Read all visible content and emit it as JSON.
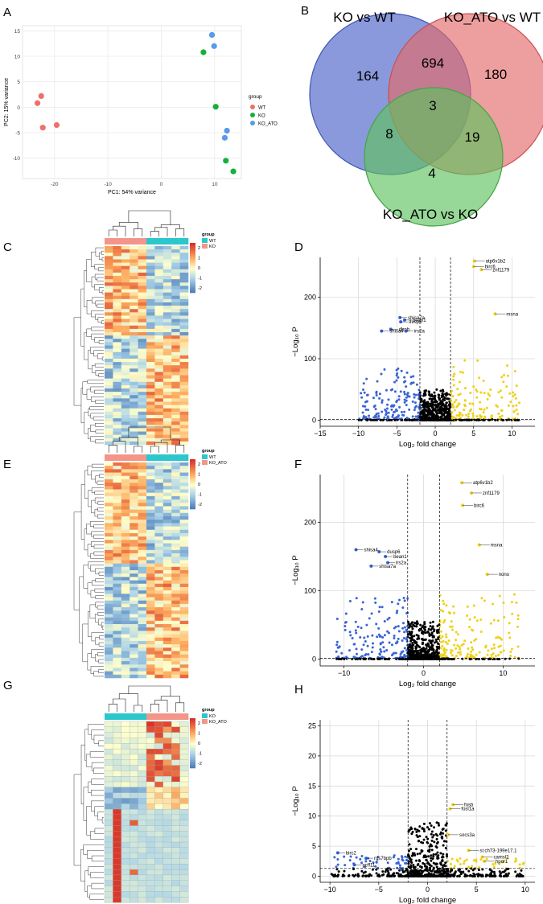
{
  "panels": {
    "A": "A",
    "B": "B",
    "C": "C",
    "D": "D",
    "E": "E",
    "F": "F",
    "G": "G",
    "H": "H"
  },
  "colors": {
    "wt": "#F07069",
    "ko": "#13B13A",
    "ko_ato": "#5A9AEB",
    "teal": "#2CC7CC",
    "salmon": "#F4958A",
    "up": "#EFD11B",
    "down": "#3A63D6",
    "ns": "#000000",
    "venn_blue": "#4C63C7",
    "venn_red": "#E36A6A",
    "venn_green": "#60C260"
  },
  "chart_data": [
    {
      "panel": "A",
      "type": "scatter",
      "xlabel": "PC1: 54% variance",
      "ylabel": "PC2: 15% variance",
      "xlim": [
        -26,
        15
      ],
      "ylim": [
        -14,
        16
      ],
      "xticks": [
        -20,
        -10,
        0,
        10
      ],
      "yticks": [
        -10,
        -5,
        0,
        5,
        10,
        15
      ],
      "legend_title": "group",
      "series": [
        {
          "name": "WT",
          "points": [
            [
              -22.5,
              2.2
            ],
            [
              -23.2,
              0.8
            ],
            [
              -22.2,
              -4.0
            ],
            [
              -19.6,
              -3.5
            ]
          ]
        },
        {
          "name": "KO",
          "points": [
            [
              7.9,
              10.8
            ],
            [
              10.2,
              0.1
            ],
            [
              12.1,
              -10.5
            ],
            [
              13.5,
              -12.6
            ]
          ]
        },
        {
          "name": "KO_ATO",
          "points": [
            [
              9.5,
              14.2
            ],
            [
              9.9,
              12.0
            ],
            [
              12.3,
              -4.6
            ],
            [
              11.9,
              -6.0
            ]
          ]
        }
      ]
    },
    {
      "panel": "B",
      "type": "venn",
      "sets": [
        "KO vs WT",
        "KO_ATO vs WT",
        "KO_ATO vs KO"
      ],
      "regions": {
        "a": "164",
        "b": "180",
        "c": "4",
        "ab": "694",
        "ac": "8",
        "bc": "19",
        "abc": "3"
      }
    },
    {
      "panel": "C",
      "type": "heatmap",
      "legend_title": "group",
      "legend": [
        "WT",
        "KO"
      ],
      "scale_ticks": [
        "2",
        "1",
        "0",
        "-1",
        "-2"
      ],
      "column_groups": [
        "KO",
        "WT"
      ]
    },
    {
      "panel": "D",
      "type": "scatter",
      "xlabel": "Log₂ fold change",
      "ylabel": "−Log₁₀ P",
      "xlim": [
        -15,
        13
      ],
      "ylim": [
        -10,
        265
      ],
      "xticks": [
        -15,
        -10,
        -5,
        0,
        5,
        10
      ],
      "yticks": [
        0,
        100,
        200
      ],
      "vlines": [
        -2,
        2
      ],
      "hline": 1.3,
      "labeled_genes": [
        {
          "label": "atp6v1b2",
          "x": 5.1,
          "y": 259
        },
        {
          "label": "birc6",
          "x": 5.0,
          "y": 250
        },
        {
          "label": "znf1179",
          "x": 6.0,
          "y": 245
        },
        {
          "label": "msna",
          "x": 7.8,
          "y": 173
        },
        {
          "label": "shisa7a",
          "x": -4.6,
          "y": 167
        },
        {
          "label": "bean1",
          "x": -4.0,
          "y": 163
        },
        {
          "label": "dusp6",
          "x": -4.5,
          "y": 160
        },
        {
          "label": "dbpb",
          "x": -5.8,
          "y": 148
        },
        {
          "label": "irs2a",
          "x": -3.8,
          "y": 145
        },
        {
          "label": "shisa4",
          "x": -7.0,
          "y": 145
        }
      ]
    },
    {
      "panel": "E",
      "type": "heatmap",
      "legend_title": "group",
      "legend": [
        "WT",
        "KO_ATO"
      ],
      "scale_ticks": [
        "2",
        "1",
        "0",
        "-1",
        "-2"
      ],
      "column_groups": [
        "KO_ATO",
        "WT"
      ]
    },
    {
      "panel": "F",
      "type": "scatter",
      "xlabel": "Log₂ fold change",
      "ylabel": "−Log₁₀ P",
      "xlim": [
        -13,
        14
      ],
      "ylim": [
        -10,
        270
      ],
      "xticks": [
        -10,
        0,
        10
      ],
      "yticks": [
        0,
        100,
        200
      ],
      "vlines": [
        -2,
        2
      ],
      "hline": 1.3,
      "labeled_genes": [
        {
          "label": "atp6v1b2",
          "x": 4.8,
          "y": 258
        },
        {
          "label": "znf1179",
          "x": 6.0,
          "y": 243
        },
        {
          "label": "birc6",
          "x": 4.9,
          "y": 225
        },
        {
          "label": "msna",
          "x": 7.0,
          "y": 167
        },
        {
          "label": "nono",
          "x": 8.0,
          "y": 124
        },
        {
          "label": "shisa4",
          "x": -8.5,
          "y": 160
        },
        {
          "label": "dusp6",
          "x": -5.6,
          "y": 157
        },
        {
          "label": "bean1",
          "x": -4.8,
          "y": 150
        },
        {
          "label": "irs2a",
          "x": -4.5,
          "y": 141
        },
        {
          "label": "shisa7a",
          "x": -6.6,
          "y": 136
        }
      ]
    },
    {
      "panel": "G",
      "type": "heatmap",
      "legend_title": "group",
      "legend": [
        "KO",
        "KO_ATO"
      ],
      "scale_ticks": [
        "2",
        "1",
        "0",
        "-1",
        "-2"
      ],
      "column_groups": [
        "KO",
        "KO_ATO"
      ]
    },
    {
      "panel": "H",
      "type": "scatter",
      "xlabel": "Log₂ fold change",
      "ylabel": "−Log₁₀ P",
      "xlim": [
        -11,
        11
      ],
      "ylim": [
        -1,
        26
      ],
      "xticks": [
        -10,
        -5,
        0,
        5,
        10
      ],
      "yticks": [
        0,
        5,
        10,
        15,
        20,
        25
      ],
      "vlines": [
        -2,
        2
      ],
      "hline": 1.3,
      "labeled_genes": [
        {
          "label": "fosl1a",
          "x": 2.3,
          "y": 11.2
        },
        {
          "label": "fosb",
          "x": 2.6,
          "y": 11.9
        },
        {
          "label": "socs3a",
          "x": 2.1,
          "y": 6.9
        },
        {
          "label": "si:ch73-199e17.1",
          "x": 4.2,
          "y": 4.3
        },
        {
          "label": "camsl2",
          "x": 5.6,
          "y": 3.2
        },
        {
          "label": "hpor1",
          "x": 5.8,
          "y": 2.5
        },
        {
          "label": "birc2",
          "x": -9.2,
          "y": 3.9
        },
        {
          "label": "rgs7bpb",
          "x": -6.3,
          "y": 3.0
        },
        {
          "label": "pcff11",
          "x": -7.5,
          "y": 1.9
        }
      ]
    }
  ]
}
